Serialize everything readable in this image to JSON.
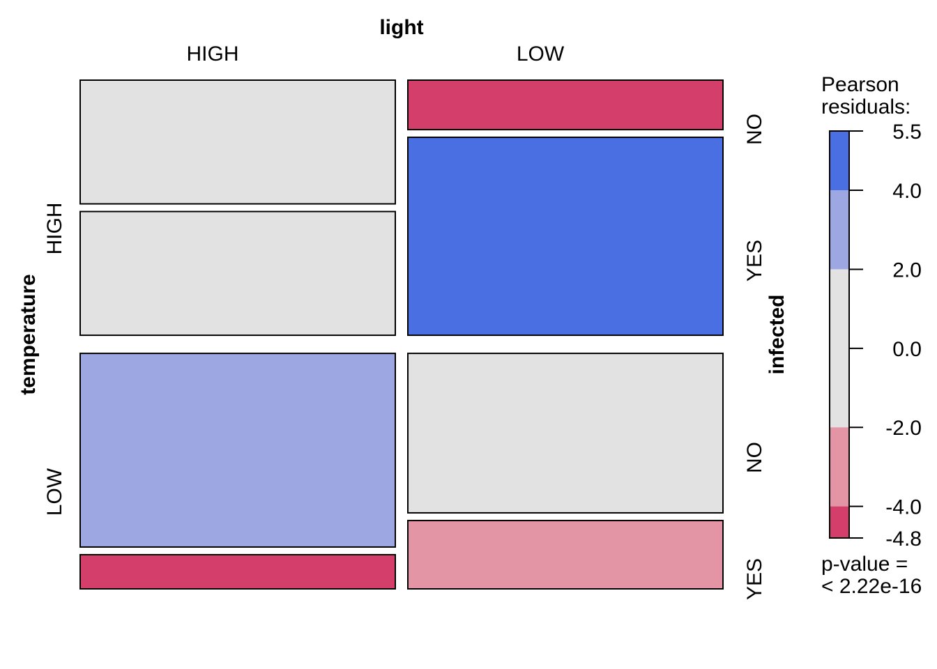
{
  "chart_data": {
    "type": "mosaic",
    "variables": {
      "column": {
        "name": "light",
        "levels": [
          "HIGH",
          "LOW"
        ]
      },
      "row": {
        "name": "temperature",
        "levels": [
          "HIGH",
          "LOW"
        ]
      },
      "split": {
        "name": "infected",
        "levels": [
          "NO",
          "YES"
        ]
      }
    },
    "column_share": [
      0.5,
      0.5
    ],
    "row_share": [
      0.52,
      0.48
    ],
    "cells": [
      {
        "light": "HIGH",
        "temperature": "HIGH",
        "infected": "NO",
        "share_within": 0.5,
        "residual_band": "-2.0 to 2.0"
      },
      {
        "light": "HIGH",
        "temperature": "HIGH",
        "infected": "YES",
        "share_within": 0.5,
        "residual_band": "-2.0 to 2.0"
      },
      {
        "light": "LOW",
        "temperature": "HIGH",
        "infected": "NO",
        "share_within": 0.2,
        "residual_band": "-4.8 to -4.0"
      },
      {
        "light": "LOW",
        "temperature": "HIGH",
        "infected": "YES",
        "share_within": 0.8,
        "residual_band": "4.0 to 5.5"
      },
      {
        "light": "HIGH",
        "temperature": "LOW",
        "infected": "NO",
        "share_within": 0.85,
        "residual_band": "2.0 to 4.0"
      },
      {
        "light": "HIGH",
        "temperature": "LOW",
        "infected": "YES",
        "share_within": 0.15,
        "residual_band": "-4.8 to -4.0"
      },
      {
        "light": "LOW",
        "temperature": "LOW",
        "infected": "NO",
        "share_within": 0.7,
        "residual_band": "-2.0 to 2.0"
      },
      {
        "light": "LOW",
        "temperature": "LOW",
        "infected": "YES",
        "share_within": 0.3,
        "residual_band": "-4.0 to -2.0"
      }
    ],
    "legend": {
      "title_line1": "Pearson",
      "title_line2": "residuals:",
      "ticks": [
        "5.5",
        "4.0",
        "2.0",
        "0.0",
        "-2.0",
        "-4.0",
        "-4.8"
      ],
      "tick_values": [
        5.5,
        4.0,
        2.0,
        0.0,
        -2.0,
        -4.0,
        -4.8
      ],
      "bands": [
        {
          "from": 4.0,
          "to": 5.5,
          "color": "#4A6FE3"
        },
        {
          "from": 2.0,
          "to": 4.0,
          "color": "#9DA8E2"
        },
        {
          "from": -2.0,
          "to": 2.0,
          "color": "#E2E2E2"
        },
        {
          "from": -4.0,
          "to": -2.0,
          "color": "#E495A5"
        },
        {
          "from": -4.8,
          "to": -4.0,
          "color": "#D33F6A"
        }
      ],
      "range": [
        -4.8,
        5.5
      ]
    },
    "p_value_line1": "p-value =",
    "p_value_line2": "< 2.22e-16"
  },
  "colors": {
    "band_high_pos": "#4A6FE3",
    "band_mid_pos": "#9DA8E2",
    "band_neutral": "#E2E2E2",
    "band_mid_neg": "#E495A5",
    "band_high_neg": "#D33F6A"
  }
}
